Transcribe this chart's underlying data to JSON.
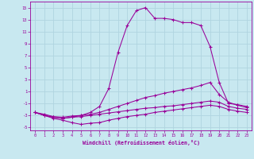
{
  "xlabel": "Windchill (Refroidissement éolien,°C)",
  "xlim": [
    -0.5,
    23.5
  ],
  "ylim": [
    -5.5,
    16.0
  ],
  "xticks": [
    0,
    1,
    2,
    3,
    4,
    5,
    6,
    7,
    8,
    9,
    10,
    11,
    12,
    13,
    14,
    15,
    16,
    17,
    18,
    19,
    20,
    21,
    22,
    23
  ],
  "yticks": [
    -5,
    -3,
    -1,
    1,
    3,
    5,
    7,
    9,
    11,
    13,
    15
  ],
  "bg_color": "#c8e8f0",
  "line_color": "#990099",
  "grid_color": "#b0d4e0",
  "lines": [
    {
      "x": [
        0,
        1,
        2,
        3,
        4,
        5,
        6,
        7,
        8,
        9,
        10,
        11,
        12,
        13,
        14,
        15,
        16,
        17,
        18,
        19,
        20,
        21,
        22,
        23
      ],
      "y": [
        -2.5,
        -3.0,
        -3.3,
        -3.5,
        -3.3,
        -3.0,
        -2.5,
        -1.5,
        1.5,
        7.5,
        12.0,
        14.5,
        15.0,
        13.2,
        13.2,
        13.0,
        12.5,
        12.5,
        12.0,
        8.5,
        2.5,
        -1.0,
        -1.2,
        -1.5
      ]
    },
    {
      "x": [
        0,
        1,
        2,
        3,
        4,
        5,
        6,
        7,
        8,
        9,
        10,
        11,
        12,
        13,
        14,
        15,
        16,
        17,
        18,
        19,
        20,
        21,
        22,
        23
      ],
      "y": [
        -2.5,
        -2.8,
        -3.2,
        -3.3,
        -3.1,
        -3.0,
        -2.8,
        -2.5,
        -2.0,
        -1.5,
        -1.0,
        -0.5,
        0.0,
        0.3,
        0.7,
        1.0,
        1.3,
        1.6,
        2.0,
        2.5,
        0.5,
        -0.8,
        -1.3,
        -1.7
      ]
    },
    {
      "x": [
        0,
        1,
        2,
        3,
        4,
        5,
        6,
        7,
        8,
        9,
        10,
        11,
        12,
        13,
        14,
        15,
        16,
        17,
        18,
        19,
        20,
        21,
        22,
        23
      ],
      "y": [
        -2.5,
        -3.0,
        -3.3,
        -3.5,
        -3.3,
        -3.2,
        -3.0,
        -2.8,
        -2.6,
        -2.4,
        -2.2,
        -2.0,
        -1.8,
        -1.7,
        -1.5,
        -1.4,
        -1.2,
        -1.0,
        -0.8,
        -0.6,
        -0.8,
        -1.5,
        -1.8,
        -2.0
      ]
    },
    {
      "x": [
        0,
        1,
        2,
        3,
        4,
        5,
        6,
        7,
        8,
        9,
        10,
        11,
        12,
        13,
        14,
        15,
        16,
        17,
        18,
        19,
        20,
        21,
        22,
        23
      ],
      "y": [
        -2.5,
        -3.0,
        -3.5,
        -3.8,
        -4.2,
        -4.5,
        -4.3,
        -4.2,
        -3.8,
        -3.5,
        -3.2,
        -3.0,
        -2.8,
        -2.5,
        -2.3,
        -2.1,
        -1.9,
        -1.7,
        -1.5,
        -1.3,
        -1.5,
        -2.0,
        -2.3,
        -2.5
      ]
    }
  ]
}
